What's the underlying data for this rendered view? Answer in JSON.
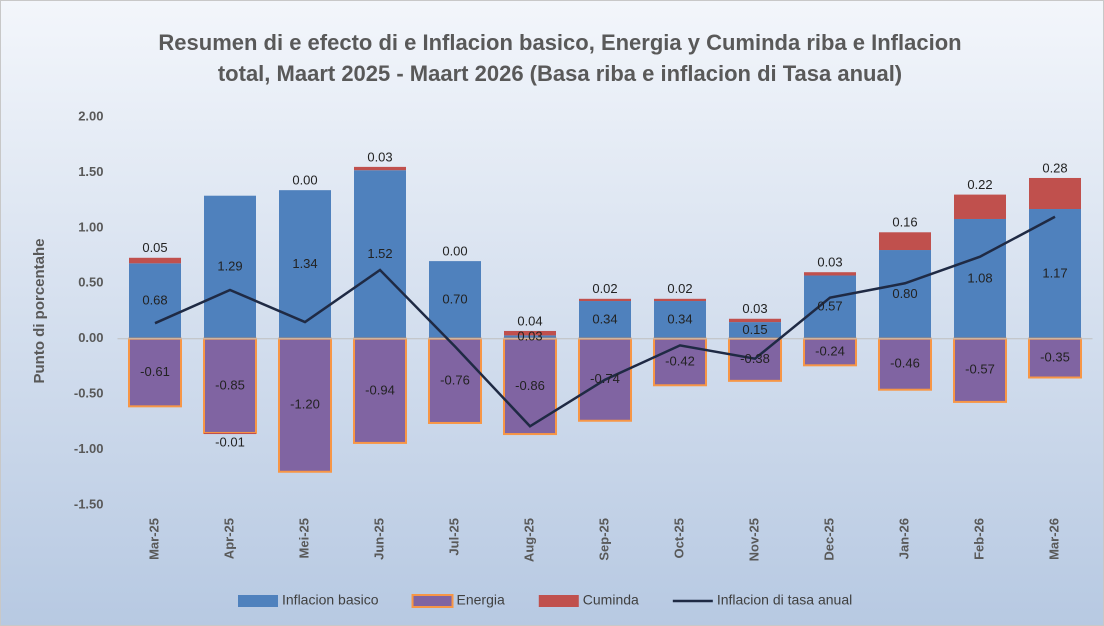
{
  "chart_data": {
    "type": "stacked-bar-line",
    "title": [
      "Resumen di e efecto di e Inflacion basico, Energia y Cuminda riba e Inflacion",
      "total, Maart 2025 - Maart 2026 (Basa riba e inflacion di Tasa anual)"
    ],
    "y_label": "Punto di porcentahe",
    "categories": [
      "Mar-25",
      "Apr-25",
      "Mei-25",
      "Jun-25",
      "Jul-25",
      "Aug-25",
      "Sep-25",
      "Oct-25",
      "Nov-25",
      "Dec-25",
      "Jan-26",
      "Feb-26",
      "Mar-26"
    ],
    "series": [
      {
        "name": "Inflacion basico",
        "kind": "bar",
        "color": "#4f81bd",
        "values": [
          0.68,
          1.29,
          1.34,
          1.52,
          0.7,
          0.03,
          0.34,
          0.34,
          0.15,
          0.57,
          0.8,
          1.08,
          1.17
        ],
        "value_labels": [
          "0.68",
          "1.29",
          "1.34",
          "1.52",
          "0.70",
          "0.03",
          "0.34",
          "0.34",
          "0.15",
          "0.57",
          "0.80",
          "1.08",
          "1.17"
        ]
      },
      {
        "name": "Energia",
        "kind": "bar",
        "color": "#8064a2",
        "border": "#f79646",
        "values": [
          -0.61,
          -0.85,
          -1.2,
          -0.94,
          -0.76,
          -0.86,
          -0.74,
          -0.42,
          -0.38,
          -0.24,
          -0.46,
          -0.57,
          -0.35
        ],
        "value_labels": [
          "-0.61",
          "-0.85",
          "-1.20",
          "-0.94",
          "-0.76",
          "-0.86",
          "-0.74",
          "-0.42",
          "-0.38",
          "-0.24",
          "-0.46",
          "-0.57",
          "-0.35"
        ]
      },
      {
        "name": "Cuminda",
        "kind": "bar",
        "color": "#c0504d",
        "values": [
          0.05,
          -0.01,
          0.0,
          0.03,
          0.0,
          0.04,
          0.02,
          0.02,
          0.03,
          0.03,
          0.16,
          0.22,
          0.28
        ],
        "value_labels": [
          "0.05",
          "-0.01",
          "0.00",
          "0.03",
          "0.00",
          "0.04",
          "0.02",
          "0.02",
          "0.03",
          "0.03",
          "0.16",
          "0.22",
          "0.28"
        ]
      },
      {
        "name": "Inflacion di tasa anual",
        "kind": "line",
        "color": "#1f2a44",
        "values": [
          0.14,
          0.44,
          0.15,
          0.62,
          -0.07,
          -0.79,
          -0.37,
          -0.06,
          -0.18,
          0.37,
          0.5,
          0.74,
          1.1
        ]
      }
    ],
    "ylim": [
      -1.5,
      2.0
    ],
    "yticks": [
      {
        "value": -1.5,
        "label": "-1.50"
      },
      {
        "value": -1.0,
        "label": "-1.00"
      },
      {
        "value": -0.5,
        "label": "-0.50"
      },
      {
        "value": 0,
        "label": "0.00"
      },
      {
        "value": 0.5,
        "label": "0.50"
      },
      {
        "value": 1.0,
        "label": "1.00"
      },
      {
        "value": 1.5,
        "label": "1.50"
      },
      {
        "value": 2.0,
        "label": "2.00"
      }
    ],
    "grid": false,
    "legend": "bottom"
  }
}
